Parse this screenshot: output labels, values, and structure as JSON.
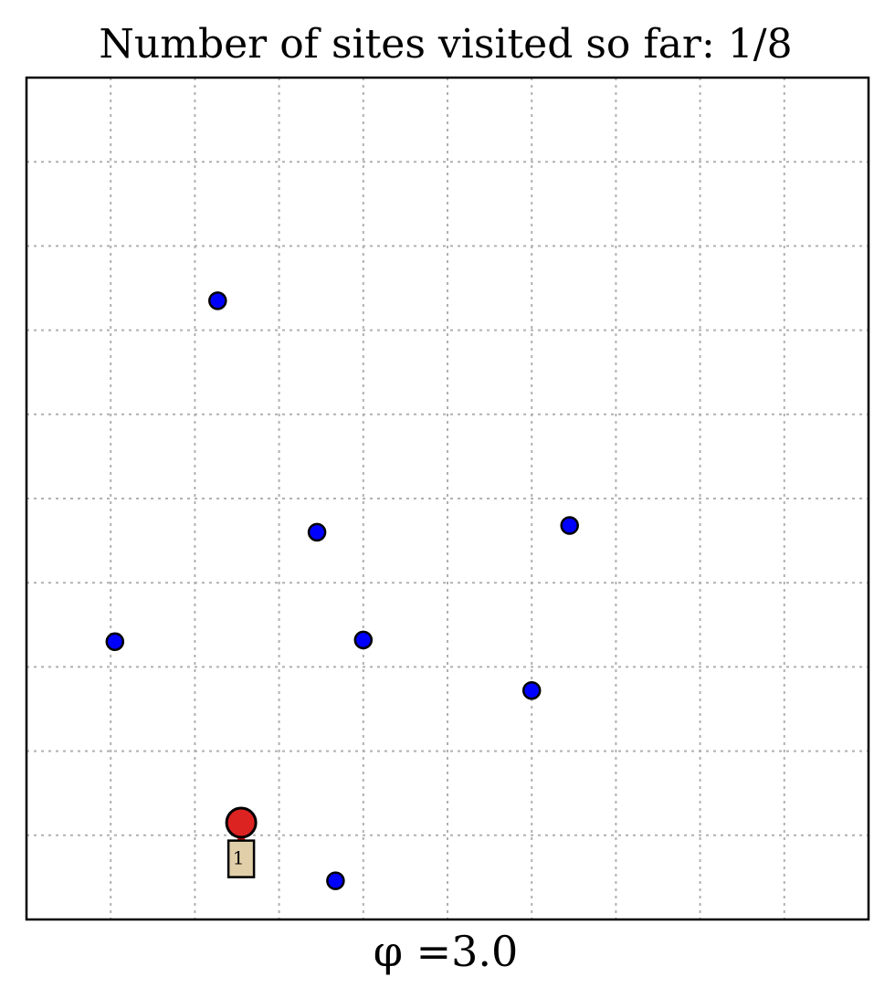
{
  "chart_data": {
    "type": "scatter",
    "title": "Number of sites visited so far: 1/8",
    "xlabel": "φ =3.0",
    "ylabel": "",
    "xlim": [
      0,
      10
    ],
    "ylim": [
      0,
      10
    ],
    "grid": true,
    "ticks_visible": false,
    "sites": {
      "x": [
        2.27,
        3.45,
        6.45,
        1.05,
        4.0,
        6.0,
        3.67
      ],
      "y": [
        7.35,
        4.6,
        4.68,
        3.3,
        3.32,
        2.72,
        0.46
      ],
      "color": "#0000ff"
    },
    "start_site": {
      "x": 2.55,
      "y": 1.15,
      "color": "#dd2222"
    },
    "visited_labels": [
      {
        "text": "1",
        "x": 2.55,
        "y": 0.72,
        "box_color": "#e0cfa8"
      }
    ],
    "path_color": "#ff0000"
  }
}
